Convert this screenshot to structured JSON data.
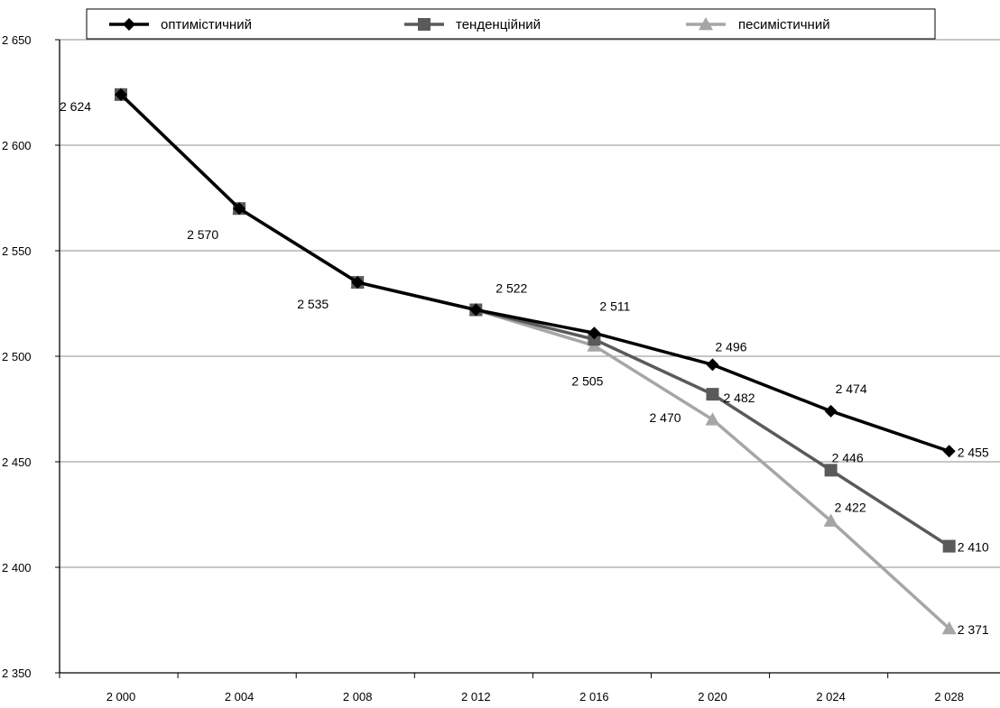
{
  "chart_data": {
    "type": "line",
    "x": [
      2000,
      2004,
      2008,
      2012,
      2016,
      2020,
      2024,
      2028
    ],
    "x_tick_labels": [
      "2 000",
      "2 004",
      "2 008",
      "2 012",
      "2 016",
      "2 020",
      "2 024",
      "2 028"
    ],
    "ylim": [
      2350,
      2650
    ],
    "y_ticks": [
      2350,
      2400,
      2450,
      2500,
      2550,
      2600,
      2650
    ],
    "y_tick_labels": [
      "2 350",
      "2 400",
      "2 450",
      "2 500",
      "2 550",
      "2 600",
      "2 650"
    ],
    "grid": "horizontal",
    "legend_position": "top",
    "series": [
      {
        "name": "оптимістичний",
        "color": "#000000",
        "marker": "diamond",
        "values": [
          2624,
          2570,
          2535,
          2522,
          2511,
          2496,
          2474,
          2455
        ]
      },
      {
        "name": "тенденційний",
        "color": "#5a5a5a",
        "marker": "square",
        "values": [
          2624,
          2570,
          2535,
          2522,
          2508,
          2482,
          2446,
          2410
        ]
      },
      {
        "name": "песимістичний",
        "color": "#a6a6a6",
        "marker": "triangle",
        "values": [
          2624,
          2570,
          2535,
          2522,
          2505,
          2470,
          2422,
          2371
        ]
      }
    ],
    "data_labels": [
      {
        "text": "2 624",
        "x": 2000,
        "value": 2624
      },
      {
        "text": "2 570",
        "x": 2004,
        "value": 2570
      },
      {
        "text": "2 535",
        "x": 2008,
        "value": 2535
      },
      {
        "text": "2 522",
        "x": 2012,
        "value": 2522
      },
      {
        "text": "2 511",
        "x": 2016,
        "value": 2511
      },
      {
        "text": "2 505",
        "x": 2016,
        "value": 2505
      },
      {
        "text": "2 496",
        "x": 2020,
        "value": 2496
      },
      {
        "text": "2 482",
        "x": 2020,
        "value": 2482
      },
      {
        "text": "2 470",
        "x": 2020,
        "value": 2470
      },
      {
        "text": "2 474",
        "x": 2024,
        "value": 2474
      },
      {
        "text": "2 446",
        "x": 2024,
        "value": 2446
      },
      {
        "text": "2 422",
        "x": 2024,
        "value": 2422
      },
      {
        "text": "2 455",
        "x": 2028,
        "value": 2455
      },
      {
        "text": "2 410",
        "x": 2028,
        "value": 2410
      },
      {
        "text": "2 371",
        "x": 2028,
        "value": 2371
      }
    ]
  }
}
